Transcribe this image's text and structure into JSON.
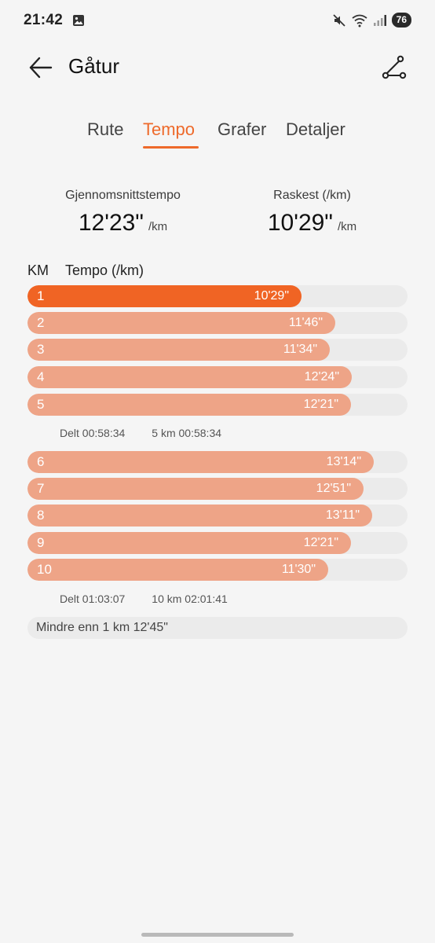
{
  "status_bar": {
    "time": "21:42",
    "battery": "76",
    "icons": [
      "gallery-icon",
      "mute-icon",
      "wifi-icon",
      "signal-icon"
    ]
  },
  "header": {
    "title": "Gåtur",
    "back_icon": "arrow-left-icon",
    "route_icon": "route-icon"
  },
  "tabs": [
    {
      "label": "Rute",
      "active": false
    },
    {
      "label": "Tempo",
      "active": true
    },
    {
      "label": "Grafer",
      "active": false
    },
    {
      "label": "Detaljer",
      "active": false
    }
  ],
  "stats": {
    "avg_label": "Gjennomsnittstempo",
    "avg_value": "12'23\"",
    "avg_unit": "/km",
    "fast_label": "Raskest (/km)",
    "fast_value": "10'29\"",
    "fast_unit": "/km"
  },
  "table": {
    "col_km": "KM",
    "col_pace": "Tempo (/km)"
  },
  "splits": [
    {
      "km": "1",
      "pace": "10'29\"",
      "seconds": 629,
      "fastest": true
    },
    {
      "km": "2",
      "pace": "11'46\"",
      "seconds": 706,
      "fastest": false
    },
    {
      "km": "3",
      "pace": "11'34\"",
      "seconds": 694,
      "fastest": false
    },
    {
      "km": "4",
      "pace": "12'24\"",
      "seconds": 744,
      "fastest": false
    },
    {
      "km": "5",
      "pace": "12'21\"",
      "seconds": 741,
      "fastest": false
    },
    {
      "km": "6",
      "pace": "13'14\"",
      "seconds": 794,
      "fastest": false
    },
    {
      "km": "7",
      "pace": "12'51\"",
      "seconds": 771,
      "fastest": false
    },
    {
      "km": "8",
      "pace": "13'11\"",
      "seconds": 791,
      "fastest": false
    },
    {
      "km": "9",
      "pace": "12'21\"",
      "seconds": 741,
      "fastest": false
    },
    {
      "km": "10",
      "pace": "11'30\"",
      "seconds": 690,
      "fastest": false
    }
  ],
  "split_summaries": [
    {
      "delt": "Delt 00:58:34",
      "total": "5 km 00:58:34"
    },
    {
      "delt": "Delt 01:03:07",
      "total": "10 km 02:01:41"
    }
  ],
  "remainder": "Mindre enn 1 km 12'45\"",
  "colors": {
    "accent": "#ee6a2b",
    "fastest_bar": "#f06424",
    "bar": "#eea487",
    "track": "#ebebeb"
  }
}
